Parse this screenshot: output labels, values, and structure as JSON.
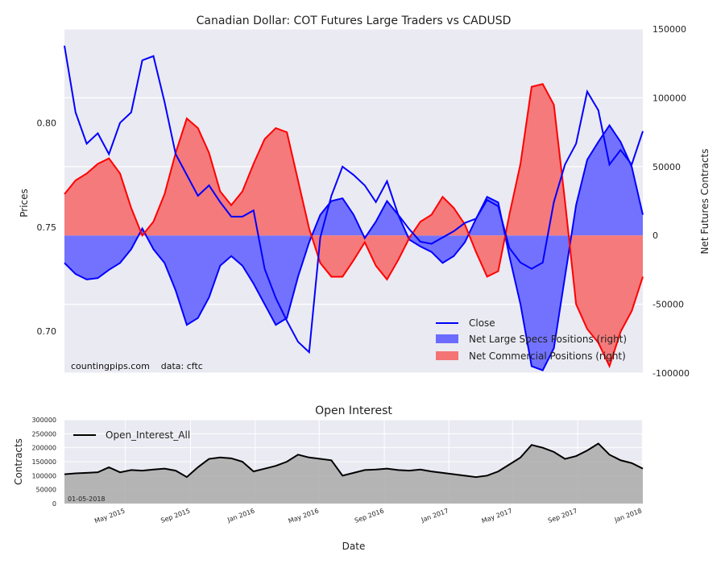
{
  "chart_data": [
    {
      "type": "line",
      "title": "Canadian Dollar: COT Futures Large Traders vs CADUSD",
      "ylabel": "Prices",
      "y2label": "Net Futures Contracts",
      "ylim": [
        0.68,
        0.845
      ],
      "y2lim": [
        -100000,
        150000
      ],
      "yticks": [
        "0.70",
        "0.75",
        "0.80"
      ],
      "y2ticks": [
        "-100000",
        "-50000",
        "0",
        "50000",
        "100000",
        "150000"
      ],
      "grid": true,
      "legend_position": "lower-right",
      "x": [
        "2015-01-06",
        "2015-01-27",
        "2015-02-17",
        "2015-03-10",
        "2015-03-31",
        "2015-04-21",
        "2015-05-12",
        "2015-06-02",
        "2015-06-23",
        "2015-07-14",
        "2015-08-04",
        "2015-08-25",
        "2015-09-15",
        "2015-10-06",
        "2015-10-27",
        "2015-11-17",
        "2015-12-08",
        "2015-12-29",
        "2016-01-19",
        "2016-02-09",
        "2016-03-01",
        "2016-03-22",
        "2016-04-12",
        "2016-05-03",
        "2016-05-24",
        "2016-06-14",
        "2016-07-05",
        "2016-07-26",
        "2016-08-16",
        "2016-09-06",
        "2016-09-27",
        "2016-10-18",
        "2016-11-08",
        "2016-11-29",
        "2016-12-20",
        "2017-01-10",
        "2017-01-31",
        "2017-02-21",
        "2017-03-14",
        "2017-04-04",
        "2017-04-25",
        "2017-05-16",
        "2017-06-06",
        "2017-06-27",
        "2017-07-18",
        "2017-08-08",
        "2017-08-29",
        "2017-09-19",
        "2017-10-10",
        "2017-10-31",
        "2017-11-21",
        "2017-12-12",
        "2018-01-02"
      ],
      "series": [
        {
          "name": "Close",
          "axis": "left",
          "color": "#0000ff",
          "values": [
            0.837,
            0.805,
            0.79,
            0.795,
            0.785,
            0.8,
            0.805,
            0.83,
            0.832,
            0.81,
            0.785,
            0.775,
            0.765,
            0.77,
            0.762,
            0.755,
            0.755,
            0.758,
            0.73,
            0.716,
            0.705,
            0.695,
            0.69,
            0.745,
            0.765,
            0.779,
            0.775,
            0.77,
            0.762,
            0.772,
            0.756,
            0.749,
            0.743,
            0.742,
            0.745,
            0.748,
            0.752,
            0.754,
            0.763,
            0.76,
            0.74,
            0.733,
            0.73,
            0.733,
            0.762,
            0.78,
            0.79,
            0.815,
            0.806,
            0.78,
            0.787,
            0.78,
            0.796
          ]
        },
        {
          "name": "Net Large Specs Positions (right)",
          "axis": "right",
          "type": "area",
          "color": "#6b6bff",
          "values": [
            -20000,
            -28000,
            -32000,
            -31000,
            -25000,
            -20000,
            -10000,
            5000,
            -10000,
            -20000,
            -40000,
            -65000,
            -60000,
            -45000,
            -22000,
            -15000,
            -22000,
            -35000,
            -50000,
            -65000,
            -60000,
            -30000,
            -5000,
            15000,
            25000,
            27000,
            15000,
            -2000,
            10000,
            25000,
            15000,
            -3000,
            -8000,
            -12000,
            -20000,
            -15000,
            -5000,
            12000,
            28000,
            24000,
            -15000,
            -50000,
            -95000,
            -98000,
            -82000,
            -30000,
            22000,
            55000,
            68000,
            80000,
            68000,
            50000,
            15000
          ]
        },
        {
          "name": "Net Commercial Positions (right)",
          "axis": "right",
          "type": "area",
          "color": "#f47474",
          "values": [
            30000,
            40000,
            45000,
            52000,
            56000,
            45000,
            20000,
            0,
            10000,
            30000,
            60000,
            85000,
            78000,
            60000,
            32000,
            22000,
            32000,
            52000,
            70000,
            78000,
            75000,
            40000,
            5000,
            -20000,
            -30000,
            -30000,
            -18000,
            -5000,
            -22000,
            -32000,
            -18000,
            -2000,
            10000,
            15000,
            28000,
            20000,
            8000,
            -12000,
            -30000,
            -26000,
            15000,
            52000,
            108000,
            110000,
            95000,
            25000,
            -50000,
            -68000,
            -78000,
            -95000,
            -70000,
            -55000,
            -30000
          ]
        }
      ],
      "annotation": "countingpips.com    data: cftc"
    },
    {
      "type": "area",
      "title": "Open Interest",
      "ylabel": "Contracts",
      "xlabel": "Date",
      "ylim": [
        0,
        300000
      ],
      "yticks": [
        "0",
        "50000",
        "100000",
        "150000",
        "200000",
        "250000",
        "300000"
      ],
      "xticks": [
        "May 2015",
        "Sep 2015",
        "Jan 2016",
        "May 2016",
        "Sep 2016",
        "Jan 2017",
        "May 2017",
        "Sep 2017",
        "Jan 2018"
      ],
      "legend_position": "top-left",
      "grid": true,
      "series": [
        {
          "name": "Open_Interest_All",
          "color": "#000000",
          "values": [
            105000,
            108000,
            110000,
            112000,
            130000,
            112000,
            120000,
            118000,
            122000,
            125000,
            118000,
            95000,
            130000,
            160000,
            165000,
            162000,
            150000,
            115000,
            125000,
            135000,
            150000,
            175000,
            165000,
            160000,
            155000,
            100000,
            110000,
            120000,
            122000,
            125000,
            120000,
            118000,
            122000,
            115000,
            110000,
            105000,
            100000,
            95000,
            100000,
            115000,
            140000,
            165000,
            210000,
            200000,
            185000,
            160000,
            170000,
            190000,
            215000,
            175000,
            155000,
            145000,
            125000
          ]
        }
      ],
      "date_note": "01-05-2018"
    }
  ]
}
